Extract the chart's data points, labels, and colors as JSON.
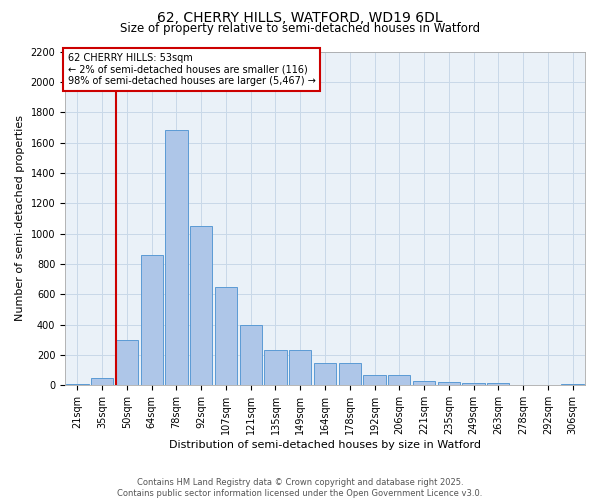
{
  "title1": "62, CHERRY HILLS, WATFORD, WD19 6DL",
  "title2": "Size of property relative to semi-detached houses in Watford",
  "xlabel": "Distribution of semi-detached houses by size in Watford",
  "ylabel": "Number of semi-detached properties",
  "bar_labels": [
    "21sqm",
    "35sqm",
    "50sqm",
    "64sqm",
    "78sqm",
    "92sqm",
    "107sqm",
    "121sqm",
    "135sqm",
    "149sqm",
    "164sqm",
    "178sqm",
    "192sqm",
    "206sqm",
    "221sqm",
    "235sqm",
    "249sqm",
    "263sqm",
    "278sqm",
    "292sqm",
    "306sqm"
  ],
  "bar_values": [
    10,
    50,
    300,
    860,
    1680,
    1050,
    650,
    400,
    230,
    230,
    150,
    150,
    70,
    70,
    30,
    25,
    18,
    15,
    5,
    3,
    10
  ],
  "bar_color": "#aec6e8",
  "bar_edge_color": "#5b9bd5",
  "vline_color": "#cc0000",
  "vline_index": 2,
  "annotation_text": "62 CHERRY HILLS: 53sqm\n← 2% of semi-detached houses are smaller (116)\n98% of semi-detached houses are larger (5,467) →",
  "annotation_box_color": "#cc0000",
  "ylim": [
    0,
    2200
  ],
  "yticks": [
    0,
    200,
    400,
    600,
    800,
    1000,
    1200,
    1400,
    1600,
    1800,
    2000,
    2200
  ],
  "grid_color": "#c8d8e8",
  "bg_color": "#eaf1f8",
  "footer": "Contains HM Land Registry data © Crown copyright and database right 2025.\nContains public sector information licensed under the Open Government Licence v3.0.",
  "title1_fontsize": 10,
  "title2_fontsize": 8.5,
  "xlabel_fontsize": 8,
  "ylabel_fontsize": 8,
  "tick_fontsize": 7,
  "annot_fontsize": 7,
  "footer_fontsize": 6
}
